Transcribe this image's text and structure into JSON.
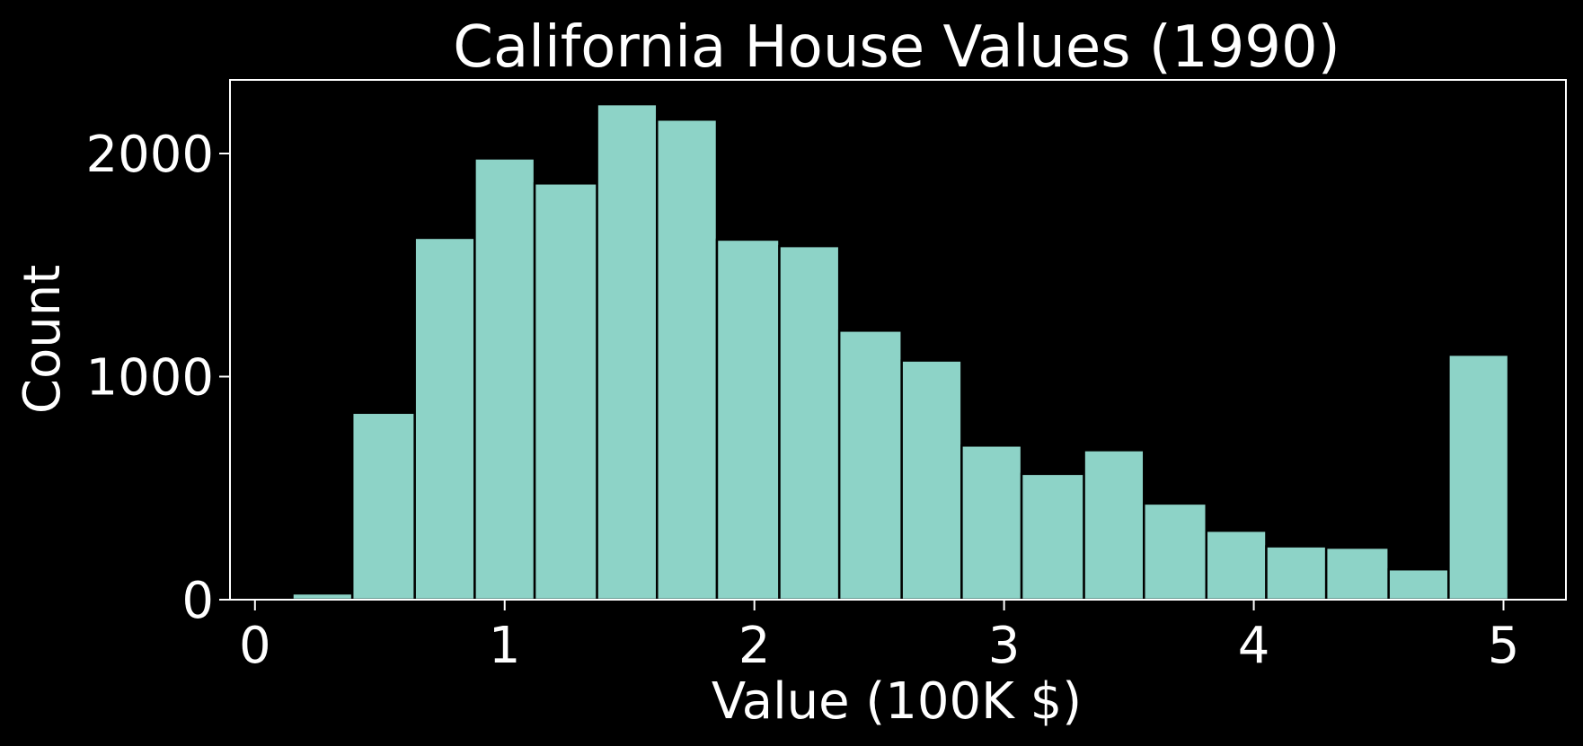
{
  "chart_data": {
    "type": "bar",
    "title": "California House Values (1990)",
    "xlabel": "Value (100K $)",
    "ylabel": "Count",
    "xlim": [
      -0.1,
      5.25
    ],
    "ylim": [
      0,
      2330
    ],
    "xticks": [
      0,
      1,
      2,
      3,
      4,
      5
    ],
    "yticks": [
      0,
      1000,
      2000
    ],
    "grid": false,
    "bin_edges": [
      0.15,
      0.39,
      0.64,
      0.88,
      1.12,
      1.37,
      1.61,
      1.85,
      2.1,
      2.34,
      2.59,
      2.83,
      3.07,
      3.32,
      3.56,
      3.81,
      4.05,
      4.29,
      4.54,
      4.78,
      5.02
    ],
    "values": [
      28,
      838,
      1622,
      1978,
      1866,
      2221,
      2152,
      1614,
      1585,
      1206,
      1072,
      691,
      564,
      670,
      431,
      309,
      239,
      233,
      136,
      1098
    ],
    "colors": {
      "background": "#000000",
      "bar": "#8dd3c7",
      "bar_edge": "#000000",
      "axis": "#ffffff",
      "text": "#ffffff"
    }
  }
}
